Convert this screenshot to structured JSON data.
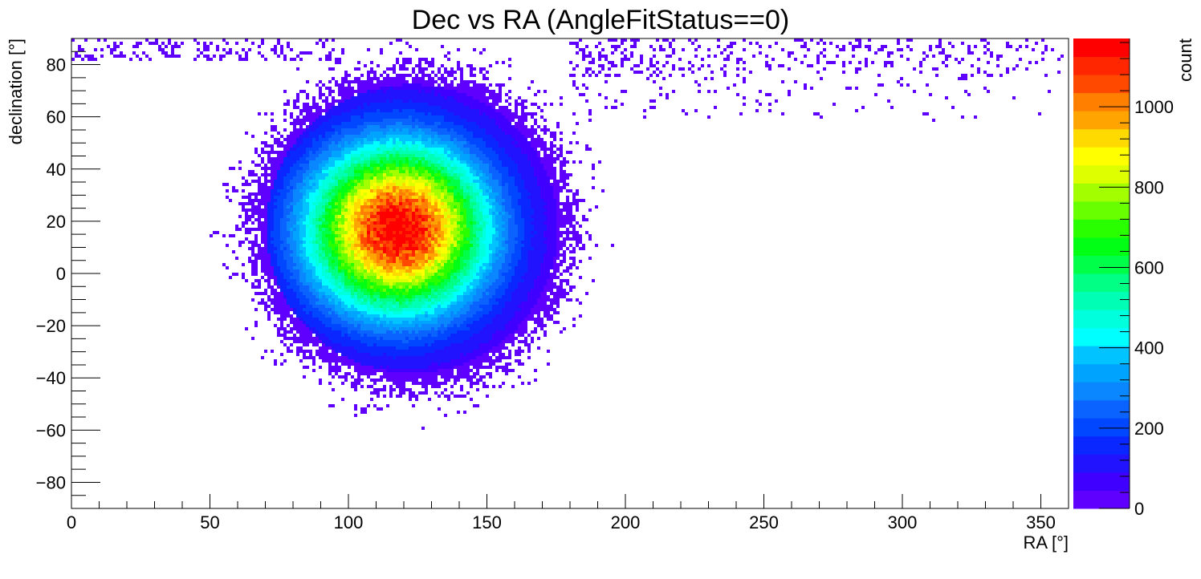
{
  "chart_data": {
    "type": "heatmap",
    "title": "Dec vs RA (AngleFitStatus==0)",
    "xlabel": "RA [°]",
    "ylabel": "declination [°]",
    "zlabel": "count",
    "xlim": [
      0,
      360
    ],
    "ylim": [
      -90,
      90
    ],
    "zlim": [
      0,
      1170
    ],
    "x_ticks": [
      0,
      50,
      100,
      150,
      200,
      250,
      300,
      350
    ],
    "y_ticks": [
      -80,
      -60,
      -40,
      -20,
      0,
      20,
      40,
      60,
      80
    ],
    "z_ticks": [
      0,
      200,
      400,
      600,
      800,
      1000
    ],
    "x_tick_labels": [
      "0",
      "50",
      "100",
      "150",
      "200",
      "250",
      "300",
      "350"
    ],
    "y_tick_labels": [
      "−80",
      "−60",
      "−40",
      "−20",
      "0",
      "20",
      "40",
      "60",
      "80"
    ],
    "z_tick_labels": [
      "0",
      "200",
      "400",
      "600",
      "800",
      "1000"
    ],
    "peak": {
      "ra": 118,
      "dec": 17,
      "count": 1170
    },
    "distribution": "single broad peak near RA 118°, Dec 17°; dense core spans roughly RA 60–200°, Dec −55 to 80°; sparse tail of low counts extending toward RA 240–360° at high declination (Dec 60–90°)",
    "palette": [
      "#5f00ff",
      "#3f00ff",
      "#2213ff",
      "#0a27ff",
      "#0047ff",
      "#0a62ff",
      "#0a86ff",
      "#00a4ff",
      "#00c3ff",
      "#00ffff",
      "#00ffdd",
      "#00ffb4",
      "#00ff84",
      "#00ff48",
      "#00ff14",
      "#2aff00",
      "#68ff00",
      "#a3ff00",
      "#ddff00",
      "#ffff00",
      "#ffda00",
      "#ffa400",
      "#ff8000",
      "#ff4900",
      "#ff2600",
      "#ff0000"
    ]
  }
}
